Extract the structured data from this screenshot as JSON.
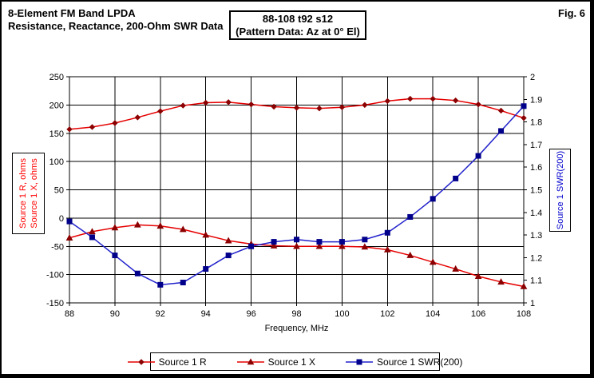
{
  "header": {
    "title_line1": "8-Element FM Band LPDA",
    "title_line2": "Resistance, Reactance, 200-Ohm SWR Data",
    "box_line1": "88-108 t92 s12",
    "box_line2": "(Pattern Data: Az at 0° El)",
    "fig_label": "Fig. 6"
  },
  "chart_data": {
    "type": "line",
    "title": "8-Element FM Band LPDA Resistance, Reactance, 200-Ohm SWR Data",
    "x": [
      88,
      89,
      90,
      91,
      92,
      93,
      94,
      95,
      96,
      97,
      98,
      99,
      100,
      101,
      102,
      103,
      104,
      105,
      106,
      107,
      108
    ],
    "x_axis": {
      "label": "Frequency, MHz",
      "min": 88,
      "max": 108,
      "step": 2
    },
    "left_axis": {
      "label_line1": "Source 1 R,  ohms",
      "label_line2": "Source 1 X,  ohms",
      "min": -150,
      "max": 250,
      "step": 50,
      "color": "#ff0000"
    },
    "right_axis": {
      "label": "Source 1 SWR(200)",
      "min": 1,
      "max": 2,
      "step": 0.1,
      "color": "#0000cc"
    },
    "grid": true,
    "legend_position": "bottom",
    "series": [
      {
        "name": "Source 1 R",
        "axis": "left",
        "marker": "diamond",
        "line_color": "#e60000",
        "marker_color": "#8b0000",
        "values": [
          157,
          161,
          168,
          178,
          189,
          199,
          204,
          205,
          201,
          197,
          195,
          194,
          196,
          200,
          207,
          211,
          211,
          208,
          201,
          190,
          177
        ]
      },
      {
        "name": "Source 1 X",
        "axis": "left",
        "marker": "triangle",
        "line_color": "#e60000",
        "marker_color": "#8b0000",
        "values": [
          -35,
          -24,
          -17,
          -12,
          -14,
          -20,
          -30,
          -40,
          -46,
          -49,
          -50,
          -50,
          -50,
          -51,
          -56,
          -66,
          -78,
          -90,
          -103,
          -113,
          -121
        ]
      },
      {
        "name": "Source 1 SWR(200)",
        "axis": "right",
        "marker": "square",
        "line_color": "#2222cc",
        "marker_color": "#00008b",
        "values": [
          1.36,
          1.29,
          1.21,
          1.13,
          1.08,
          1.09,
          1.15,
          1.21,
          1.25,
          1.27,
          1.28,
          1.27,
          1.27,
          1.28,
          1.31,
          1.38,
          1.46,
          1.55,
          1.65,
          1.76,
          1.87
        ]
      }
    ]
  }
}
